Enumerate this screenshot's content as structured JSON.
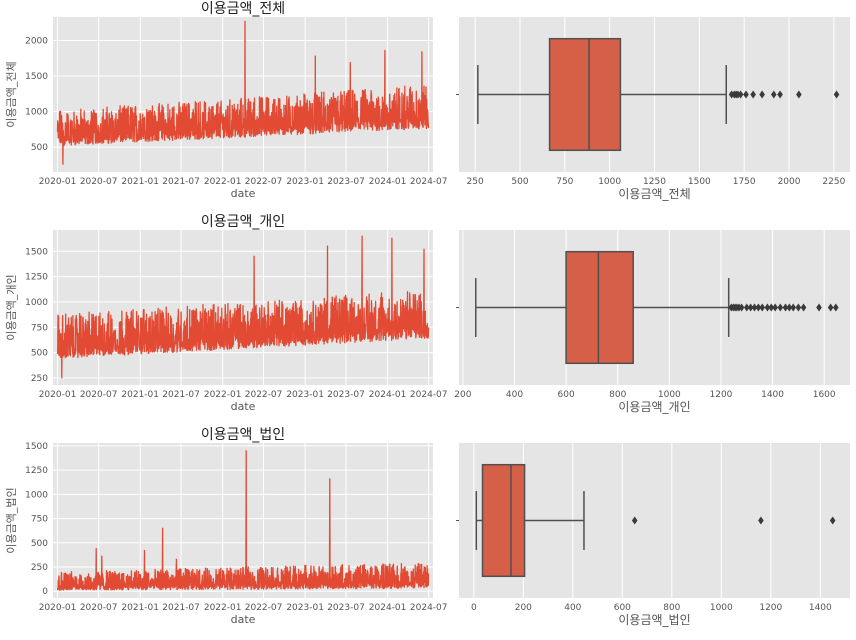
{
  "chart_data": [
    {
      "id": "ts_total",
      "type": "line",
      "title": "이용금액_전체",
      "xlabel": "date",
      "ylabel": "이용금액_전체",
      "x_ticks": [
        "2020-01",
        "2020-07",
        "2021-01",
        "2021-07",
        "2022-01",
        "2022-07",
        "2023-01",
        "2023-07",
        "2024-01",
        "2024-07"
      ],
      "y_ticks": [
        500,
        1000,
        1500,
        2000
      ],
      "ylim": [
        150,
        2330
      ],
      "grid": true,
      "color": "#E24A33",
      "x_range": [
        "2020-01-01",
        "2024-06-30"
      ],
      "trend": {
        "start_low": 520,
        "start_high": 1020,
        "end_low": 760,
        "end_high": 1380
      },
      "spikes": [
        {
          "date": "2022-04-10",
          "value": 2270
        },
        {
          "date": "2023-02-15",
          "value": 1780
        },
        {
          "date": "2023-12-20",
          "value": 1860
        },
        {
          "date": "2024-06-01",
          "value": 1840
        },
        {
          "date": "2023-07-20",
          "value": 1690
        },
        {
          "date": "2020-01-25",
          "value": 260
        }
      ]
    },
    {
      "id": "box_total",
      "type": "box",
      "xlabel": "이용금액_전체",
      "x_ticks": [
        250,
        500,
        750,
        1000,
        1250,
        1500,
        1750,
        2000,
        2250
      ],
      "xlim": [
        160,
        2340
      ],
      "stats": {
        "whisker_low": 265,
        "q1": 665,
        "median": 885,
        "q3": 1060,
        "whisker_high": 1650
      },
      "outliers": [
        1680,
        1695,
        1705,
        1715,
        1730,
        1760,
        1800,
        1850,
        1915,
        1950,
        2055,
        2265
      ],
      "color": "#D65F48"
    },
    {
      "id": "ts_personal",
      "type": "line",
      "title": "이용금액_개인",
      "xlabel": "date",
      "ylabel": "이용금액_개인",
      "x_ticks": [
        "2020-01",
        "2020-07",
        "2021-01",
        "2021-07",
        "2022-01",
        "2022-07",
        "2023-01",
        "2023-07",
        "2024-01",
        "2024-07"
      ],
      "y_ticks": [
        250,
        500,
        750,
        1000,
        1250,
        1500
      ],
      "ylim": [
        180,
        1710
      ],
      "grid": true,
      "color": "#E24A33",
      "x_range": [
        "2020-01-01",
        "2024-06-30"
      ],
      "trend": {
        "start_low": 440,
        "start_high": 880,
        "end_low": 640,
        "end_high": 1120
      },
      "spikes": [
        {
          "date": "2023-09-10",
          "value": 1650
        },
        {
          "date": "2024-01-20",
          "value": 1630
        },
        {
          "date": "2023-04-10",
          "value": 1550
        },
        {
          "date": "2024-06-10",
          "value": 1520
        },
        {
          "date": "2022-05-20",
          "value": 1450
        },
        {
          "date": "2020-01-20",
          "value": 250
        }
      ]
    },
    {
      "id": "box_personal",
      "type": "box",
      "xlabel": "이용금액_개인",
      "x_ticks": [
        200,
        400,
        600,
        800,
        1000,
        1200,
        1400,
        1600
      ],
      "xlim": [
        185,
        1700
      ],
      "stats": {
        "whisker_low": 250,
        "q1": 600,
        "median": 725,
        "q3": 860,
        "whisker_high": 1230
      },
      "outliers": [
        1240,
        1248,
        1255,
        1262,
        1270,
        1280,
        1300,
        1315,
        1330,
        1345,
        1360,
        1380,
        1395,
        1410,
        1430,
        1450,
        1465,
        1480,
        1500,
        1520,
        1580,
        1625,
        1645
      ],
      "color": "#D65F48"
    },
    {
      "id": "ts_corporate",
      "type": "line",
      "title": "이용금액_법인",
      "xlabel": "date",
      "ylabel": "이용금액_법인",
      "x_ticks": [
        "2020-01",
        "2020-07",
        "2021-01",
        "2021-07",
        "2022-01",
        "2022-07",
        "2023-01",
        "2023-07",
        "2024-01",
        "2024-07"
      ],
      "y_ticks": [
        0,
        250,
        500,
        750,
        1000,
        1250,
        1500
      ],
      "ylim": [
        -70,
        1530
      ],
      "grid": true,
      "color": "#E24A33",
      "x_range": [
        "2020-01-01",
        "2024-06-30"
      ],
      "trend": {
        "start_low": 10,
        "start_high": 200,
        "end_low": 30,
        "end_high": 300
      },
      "spikes": [
        {
          "date": "2022-04-15",
          "value": 1450
        },
        {
          "date": "2023-04-20",
          "value": 1160
        },
        {
          "date": "2021-04-10",
          "value": 650
        },
        {
          "date": "2020-06-20",
          "value": 440
        },
        {
          "date": "2021-01-20",
          "value": 420
        },
        {
          "date": "2020-07-15",
          "value": 360
        },
        {
          "date": "2021-06-10",
          "value": 330
        }
      ]
    },
    {
      "id": "box_corporate",
      "type": "box",
      "xlabel": "이용금액_법인",
      "x_ticks": [
        0,
        200,
        400,
        600,
        800,
        1000,
        1200,
        1400
      ],
      "xlim": [
        -60,
        1520
      ],
      "stats": {
        "whisker_low": 10,
        "q1": 35,
        "median": 150,
        "q3": 205,
        "whisker_high": 445
      },
      "outliers": [
        650,
        1160,
        1450
      ],
      "color": "#D65F48"
    }
  ]
}
